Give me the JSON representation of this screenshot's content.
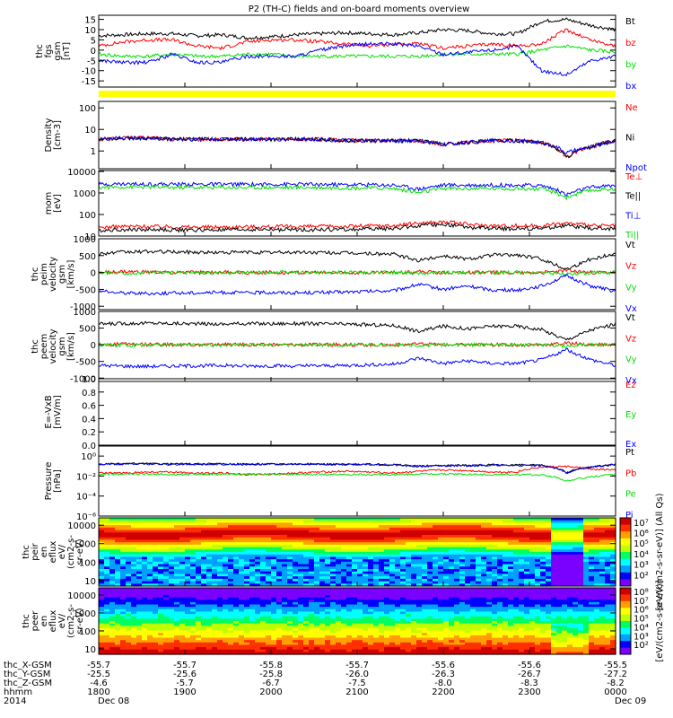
{
  "title": "P2 (TH-C) fields and on-board moments overview",
  "colors": {
    "black": "#000000",
    "red": "#ff0000",
    "green": "#00e000",
    "blue": "#0000ff",
    "yellow": "#ffff00"
  },
  "chart_data": [
    {
      "type": "line",
      "panel": "fgs",
      "ylabel": [
        "thc",
        "fgs",
        "gsm",
        "[nT]"
      ],
      "ylim": [
        -18,
        17
      ],
      "yticks": [
        "15",
        "10",
        "5",
        "0",
        "-5",
        "-10",
        "-15"
      ],
      "ytick_values": [
        15,
        10,
        5,
        0,
        -5,
        -10,
        -15
      ],
      "series": [
        {
          "name": "Bt",
          "color": "black",
          "values": [
            7,
            7.5,
            8,
            8,
            7,
            7.5,
            6,
            6.5,
            7.5,
            8,
            8.5,
            8,
            7.5,
            8.5,
            10,
            9.5,
            8,
            8,
            14,
            15,
            12,
            10
          ]
        },
        {
          "name": "bz",
          "color": "red",
          "values": [
            2,
            4,
            5,
            5,
            2,
            1,
            4,
            5,
            5,
            4,
            3,
            2,
            3,
            3,
            1,
            2,
            3,
            2,
            3,
            10,
            5,
            2
          ]
        },
        {
          "name": "by",
          "color": "green",
          "values": [
            -2,
            -3,
            -3,
            -2,
            -3,
            -3,
            -2,
            -2,
            -3,
            -3,
            -3,
            -3,
            -3,
            -3,
            -2,
            -2,
            -2,
            -2,
            0,
            2,
            0,
            -1
          ]
        },
        {
          "name": "bx",
          "color": "blue",
          "values": [
            -5,
            -6,
            -6,
            -2,
            -6,
            -6,
            -3,
            -3,
            -3,
            0,
            2,
            3,
            3,
            2,
            -2,
            -1,
            0,
            2,
            -10,
            -12,
            -5,
            -3
          ]
        }
      ]
    },
    {
      "type": "line",
      "panel": "density",
      "ylabel": [
        "Density",
        "[cm-3]"
      ],
      "ylim_log": [
        0.15,
        200
      ],
      "yticks": [
        "100",
        "10",
        "1"
      ],
      "ytick_values": [
        100,
        10,
        1
      ],
      "series": [
        {
          "name": "Ne",
          "color": "red",
          "values": [
            3.5,
            4,
            4,
            3.5,
            3.5,
            3.5,
            3.5,
            3.5,
            3.5,
            3.5,
            3,
            3,
            3,
            3,
            2,
            2.5,
            3,
            3,
            2.5,
            0.5,
            1.5,
            3
          ]
        },
        {
          "name": "Ni",
          "color": "black",
          "values": [
            3.5,
            4,
            4,
            3.5,
            3.5,
            3.5,
            3.5,
            3.5,
            3.5,
            3.5,
            3,
            3,
            3,
            3,
            2,
            2.5,
            3,
            3,
            2.5,
            0.5,
            1.5,
            3
          ]
        },
        {
          "name": "Npot",
          "color": "blue",
          "values": [
            3.5,
            4,
            4,
            3.5,
            3.5,
            3.5,
            3.5,
            3.5,
            3.5,
            3.5,
            3,
            3,
            3,
            3,
            2,
            2.5,
            3,
            3,
            2.5,
            0.8,
            1.5,
            3
          ]
        }
      ]
    },
    {
      "type": "line",
      "panel": "temperature",
      "ylabel": [
        "mom",
        "[eV]"
      ],
      "ylim_log": [
        10,
        11000
      ],
      "yticks": [
        "10000",
        "1000",
        "100",
        "10"
      ],
      "ytick_values": [
        10000,
        1000,
        100,
        10
      ],
      "series": [
        {
          "name": "Te⊥",
          "color": "red",
          "values": [
            25,
            28,
            28,
            27,
            26,
            26,
            27,
            27,
            28,
            28,
            28,
            30,
            30,
            40,
            45,
            35,
            30,
            30,
            30,
            40,
            30,
            30
          ]
        },
        {
          "name": "Te||",
          "color": "black",
          "values": [
            18,
            20,
            20,
            19,
            19,
            19,
            20,
            20,
            20,
            20,
            20,
            22,
            22,
            30,
            35,
            25,
            22,
            22,
            22,
            30,
            22,
            22
          ]
        },
        {
          "name": "Ti⊥",
          "color": "blue",
          "values": [
            2500,
            2600,
            2600,
            2500,
            2500,
            2500,
            2500,
            2500,
            2500,
            2500,
            2400,
            2400,
            2300,
            1500,
            2300,
            2300,
            2300,
            2300,
            2200,
            800,
            1800,
            2200
          ]
        },
        {
          "name": "Ti||",
          "color": "green",
          "values": [
            1800,
            1900,
            1900,
            1800,
            1800,
            1800,
            1800,
            1800,
            1800,
            1800,
            1700,
            1700,
            1600,
            1000,
            1600,
            1600,
            1600,
            1600,
            1500,
            600,
            1300,
            1600
          ]
        }
      ]
    },
    {
      "type": "line",
      "panel": "peim_velocity",
      "ylabel": [
        "thc",
        "peim",
        "velocity",
        "gsm",
        "[km/s]"
      ],
      "ylim": [
        -1100,
        1000
      ],
      "yticks": [
        "1000",
        "500",
        "0",
        "-500",
        "-1000"
      ],
      "ytick_values": [
        1000,
        500,
        0,
        -500,
        -1000
      ],
      "series": [
        {
          "name": "Vt",
          "color": "black",
          "values": [
            560,
            600,
            620,
            610,
            600,
            590,
            600,
            590,
            600,
            590,
            580,
            560,
            540,
            350,
            500,
            400,
            520,
            520,
            400,
            100,
            400,
            560
          ]
        },
        {
          "name": "Vz",
          "color": "red",
          "values": [
            0,
            20,
            10,
            0,
            0,
            10,
            0,
            0,
            0,
            0,
            0,
            0,
            0,
            20,
            0,
            0,
            0,
            0,
            0,
            50,
            0,
            0
          ]
        },
        {
          "name": "Vy",
          "color": "green",
          "values": [
            0,
            -20,
            -10,
            0,
            0,
            -10,
            0,
            0,
            0,
            0,
            0,
            0,
            0,
            -20,
            0,
            0,
            0,
            0,
            0,
            -50,
            0,
            0
          ]
        },
        {
          "name": "Vx",
          "color": "blue",
          "values": [
            -560,
            -600,
            -620,
            -610,
            -600,
            -590,
            -600,
            -590,
            -600,
            -590,
            -580,
            -560,
            -540,
            -350,
            -500,
            -400,
            -520,
            -520,
            -400,
            -100,
            -400,
            -560
          ]
        }
      ]
    },
    {
      "type": "line",
      "panel": "peem_velocity",
      "ylabel": [
        "thc",
        "peem",
        "velocity",
        "gsm",
        "[km/s]"
      ],
      "ylim": [
        -1100,
        1000
      ],
      "yticks": [
        "1000",
        "500",
        "0",
        "-500",
        "-1000"
      ],
      "ytick_values": [
        1000,
        500,
        0,
        -500,
        -1000
      ],
      "series": [
        {
          "name": "Vt",
          "color": "black",
          "values": [
            620,
            640,
            650,
            640,
            630,
            620,
            640,
            630,
            640,
            630,
            620,
            600,
            580,
            400,
            560,
            480,
            560,
            560,
            450,
            150,
            450,
            620
          ]
        },
        {
          "name": "Vz",
          "color": "red",
          "values": [
            0,
            20,
            10,
            0,
            0,
            10,
            0,
            0,
            0,
            0,
            0,
            0,
            0,
            20,
            0,
            0,
            0,
            0,
            0,
            50,
            0,
            0
          ]
        },
        {
          "name": "Vy",
          "color": "green",
          "values": [
            0,
            -20,
            -10,
            0,
            0,
            -10,
            0,
            0,
            0,
            0,
            0,
            0,
            0,
            -20,
            0,
            0,
            0,
            0,
            0,
            -50,
            0,
            0
          ]
        },
        {
          "name": "Vx",
          "color": "blue",
          "values": [
            -620,
            -640,
            -650,
            -640,
            -630,
            -620,
            -640,
            -630,
            -640,
            -630,
            -620,
            -600,
            -580,
            -400,
            -560,
            -480,
            -560,
            -560,
            -450,
            -150,
            -450,
            -620
          ]
        }
      ]
    },
    {
      "type": "line",
      "panel": "efield",
      "ylabel": [
        "E=-VxB",
        "[mV/m]"
      ],
      "ylim": [
        0,
        1
      ],
      "yticks": [
        "1.0",
        "0.8",
        "0.6",
        "0.4",
        "0.2",
        "0.0"
      ],
      "ytick_values": [
        1.0,
        0.8,
        0.6,
        0.4,
        0.2,
        0.0
      ],
      "series": [
        {
          "name": "Ez",
          "color": "red",
          "values": []
        },
        {
          "name": "Ey",
          "color": "green",
          "values": []
        },
        {
          "name": "Ex",
          "color": "blue",
          "values": []
        }
      ]
    },
    {
      "type": "line",
      "panel": "pressure",
      "ylabel": [
        "Pressure",
        "[nPa]"
      ],
      "ylim_log": [
        1e-06,
        10
      ],
      "yticks": [
        "10⁰",
        "10⁻²",
        "10⁻⁴",
        "10⁻⁶"
      ],
      "ytick_values": [
        1,
        0.01,
        0.0001,
        1e-06
      ],
      "series": [
        {
          "name": "Pt",
          "color": "black",
          "values": [
            0.15,
            0.17,
            0.17,
            0.16,
            0.16,
            0.16,
            0.16,
            0.16,
            0.16,
            0.16,
            0.15,
            0.15,
            0.14,
            0.1,
            0.12,
            0.12,
            0.13,
            0.13,
            0.12,
            0.02,
            0.08,
            0.15
          ]
        },
        {
          "name": "Pb",
          "color": "red",
          "values": [
            0.02,
            0.02,
            0.025,
            0.025,
            0.02,
            0.02,
            0.015,
            0.015,
            0.02,
            0.025,
            0.03,
            0.025,
            0.02,
            0.03,
            0.04,
            0.035,
            0.025,
            0.025,
            0.08,
            0.09,
            0.05,
            0.04
          ]
        },
        {
          "name": "Pe",
          "color": "green",
          "values": [
            0.015,
            0.016,
            0.016,
            0.015,
            0.015,
            0.015,
            0.015,
            0.015,
            0.015,
            0.015,
            0.014,
            0.014,
            0.014,
            0.016,
            0.016,
            0.015,
            0.014,
            0.014,
            0.013,
            0.003,
            0.008,
            0.014
          ]
        },
        {
          "name": "Pi",
          "color": "blue",
          "values": [
            0.14,
            0.16,
            0.16,
            0.15,
            0.15,
            0.15,
            0.15,
            0.15,
            0.15,
            0.15,
            0.14,
            0.14,
            0.13,
            0.09,
            0.11,
            0.11,
            0.12,
            0.12,
            0.11,
            0.02,
            0.07,
            0.14
          ]
        }
      ]
    },
    {
      "type": "heatmap",
      "panel": "peir_eflux",
      "ylabel": [
        "thc",
        "peir",
        "en",
        "eflux",
        "eV/",
        "(cm2-s-",
        "sr-eV)"
      ],
      "ylim_log": [
        5,
        25000
      ],
      "yticks": [
        "10000",
        "1000",
        "100",
        "10"
      ],
      "ytick_values": [
        10000,
        1000,
        100,
        10
      ],
      "colorbar_label": "[eV/(cm2-s-sr-eV)] (All Qs)",
      "colorbar_ticks": [
        "10⁷",
        "10⁶",
        "10⁵",
        "10⁴",
        "10³",
        "10²"
      ],
      "colorbar_range_log": [
        1,
        7.5
      ]
    },
    {
      "type": "heatmap",
      "panel": "peer_eflux",
      "ylabel": [
        "thc",
        "peer",
        "en",
        "eflux",
        "eV/",
        "(cm2-s-",
        "sr-eV)"
      ],
      "ylim_log": [
        5,
        25000
      ],
      "yticks": [
        "10000",
        "1000",
        "100",
        "10"
      ],
      "ytick_values": [
        10000,
        1000,
        100,
        10
      ],
      "colorbar_label": "[eV/(cm2-s-sr-eV)]",
      "colorbar_ticks": [
        "10⁸",
        "10⁷",
        "10⁶",
        "10⁵",
        "10⁴",
        "10³",
        "10²"
      ],
      "colorbar_range_log": [
        1,
        8.5
      ]
    }
  ],
  "xaxis": {
    "row_labels": [
      "thc_X-GSM",
      "thc_Y-GSM",
      "thc_Z-GSM",
      "hhmm",
      "2014"
    ],
    "columns": [
      {
        "x": "-55.7",
        "y": "-25.5",
        "z": "-4.6",
        "hhmm": "1800",
        "date": "Dec 08"
      },
      {
        "x": "-55.7",
        "y": "-25.6",
        "z": "-5.7",
        "hhmm": "1900",
        "date": ""
      },
      {
        "x": "-55.8",
        "y": "-25.8",
        "z": "-6.7",
        "hhmm": "2000",
        "date": ""
      },
      {
        "x": "-55.7",
        "y": "-26.0",
        "z": "-7.5",
        "hhmm": "2100",
        "date": ""
      },
      {
        "x": "-55.6",
        "y": "-26.3",
        "z": "-8.0",
        "hhmm": "2200",
        "date": ""
      },
      {
        "x": "-55.6",
        "y": "-26.7",
        "z": "-8.3",
        "hhmm": "2300",
        "date": ""
      },
      {
        "x": "-55.5",
        "y": "-27.2",
        "z": "-8.2",
        "hhmm": "0000",
        "date": "Dec 09"
      }
    ]
  }
}
